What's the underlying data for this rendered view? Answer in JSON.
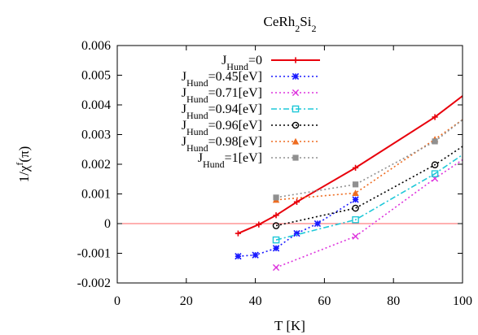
{
  "chart_data": {
    "type": "line",
    "title": "CeRh2Si2",
    "title_parts": {
      "base": "CeRh",
      "sub1": "2",
      "mid": "Si",
      "sub2": "2"
    },
    "xlabel": "T [K]",
    "ylabel": "1/χf(π)",
    "ylabel_parts": {
      "pre": "1/χ",
      "sup": "f",
      "post": "(π)"
    },
    "xlim": [
      0,
      100
    ],
    "ylim": [
      -0.002,
      0.006
    ],
    "xticks": [
      0,
      20,
      40,
      60,
      80,
      100
    ],
    "yticks": [
      -0.002,
      -0.001,
      0,
      0.001,
      0.002,
      0.003,
      0.004,
      0.005,
      0.006
    ],
    "xtick_labels": [
      "0",
      "20",
      "40",
      "60",
      "80",
      "100"
    ],
    "ytick_labels": [
      "-0.002",
      "-0.001",
      "0",
      "0.001",
      "0.002",
      "0.003",
      "0.004",
      "0.005",
      "0.006"
    ],
    "grid": false,
    "legend_position": "top-left",
    "zero_line_color": "#ff6060",
    "series": [
      {
        "legend_base": "J",
        "legend_sub": "Hund",
        "legend_rest": "=0",
        "color": "#e8000b",
        "dash": "solid",
        "marker": "plus",
        "x": [
          35,
          41,
          46,
          52,
          69,
          92,
          100
        ],
        "y": [
          -0.00033,
          -3e-05,
          0.00028,
          0.00073,
          0.00188,
          0.00359,
          0.0043
        ]
      },
      {
        "legend_base": "J",
        "legend_sub": "Hund",
        "legend_rest": "=0.45[eV]",
        "color": "#1a1aff",
        "dash": "dot",
        "marker": "star",
        "x": [
          35,
          40,
          46,
          52,
          58,
          69
        ],
        "y": [
          -0.0011,
          -0.00106,
          -0.00083,
          -0.00033,
          0.0,
          0.00081
        ]
      },
      {
        "legend_base": "J",
        "legend_sub": "Hund",
        "legend_rest": "=0.71[eV]",
        "color": "#dd33dd",
        "dash": "dot",
        "marker": "x",
        "x": [
          46,
          69,
          92,
          100
        ],
        "y": [
          -0.00148,
          -0.00043,
          0.00152,
          0.00215
        ]
      },
      {
        "legend_base": "J",
        "legend_sub": "Hund",
        "legend_rest": "=0.94[eV]",
        "color": "#1fc8d8",
        "dash": "dashdot",
        "marker": "square-open",
        "x": [
          46,
          69,
          92,
          100
        ],
        "y": [
          -0.00055,
          0.00013,
          0.00168,
          0.00232
        ]
      },
      {
        "legend_base": "J",
        "legend_sub": "Hund",
        "legend_rest": "=0.96[eV]",
        "color": "#000000",
        "dash": "dot",
        "marker": "circle-open",
        "x": [
          46,
          69,
          92,
          100
        ],
        "y": [
          -7e-05,
          0.00052,
          0.00198,
          0.0026
        ]
      },
      {
        "legend_base": "J",
        "legend_sub": "Hund",
        "legend_rest": "=0.98[eV]",
        "color": "#ee6c20",
        "dash": "dot",
        "marker": "triangle",
        "x": [
          46,
          69,
          92,
          100
        ],
        "y": [
          0.0008,
          0.00103,
          0.00284,
          0.0035
        ]
      },
      {
        "legend_base": "J",
        "legend_sub": "Hund",
        "legend_rest": "=1[eV]",
        "color": "#909090",
        "dash": "dot",
        "marker": "square",
        "x": [
          46,
          69,
          92,
          100
        ],
        "y": [
          0.00088,
          0.00132,
          0.00277,
          0.0035
        ]
      }
    ]
  }
}
